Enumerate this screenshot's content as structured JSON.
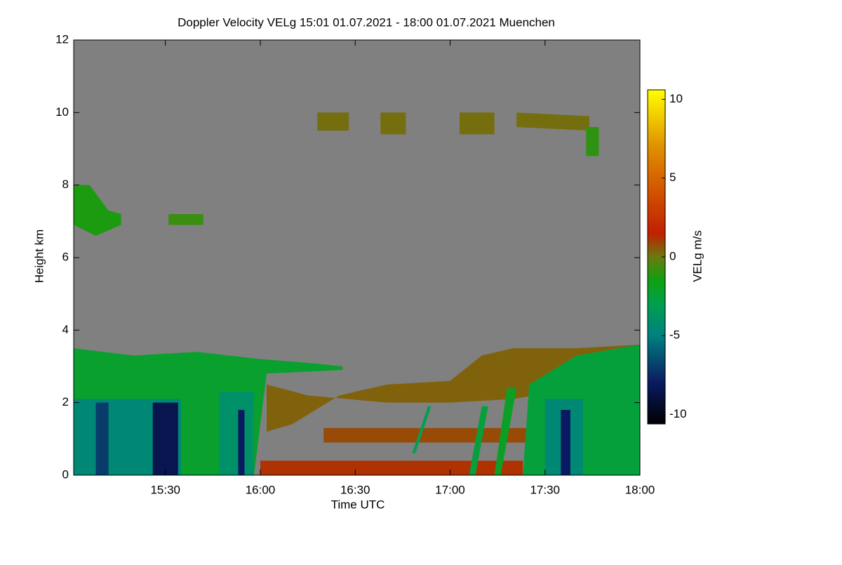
{
  "chart_data": {
    "type": "heatmap",
    "title": "Doppler Velocity VELg   15:01 01.07.2021 - 18:00 01.07.2021 Muenchen",
    "xlabel": "Time UTC",
    "ylabel": "Height km",
    "colorbar_label": "VELg m/s",
    "xlim": [
      901,
      1080
    ],
    "xticks": [
      {
        "value": 930,
        "label": "15:30"
      },
      {
        "value": 960,
        "label": "16:00"
      },
      {
        "value": 990,
        "label": "16:30"
      },
      {
        "value": 1020,
        "label": "17:00"
      },
      {
        "value": 1050,
        "label": "17:30"
      },
      {
        "value": 1080,
        "label": "18:00"
      }
    ],
    "ylim": [
      0,
      12
    ],
    "yticks": [
      0,
      2,
      4,
      6,
      8,
      10,
      12
    ],
    "zlim": [
      -10.6,
      10.6
    ],
    "zticks": [
      -10,
      -5,
      0,
      5,
      10
    ],
    "background": "#808080",
    "colormap": [
      {
        "value": -10.6,
        "color": "#000000"
      },
      {
        "value": -8,
        "color": "#0a1a60"
      },
      {
        "value": -5,
        "color": "#008080"
      },
      {
        "value": -3,
        "color": "#00a050"
      },
      {
        "value": -1.5,
        "color": "#10a010"
      },
      {
        "value": 0,
        "color": "#6a7a10"
      },
      {
        "value": 1.5,
        "color": "#c02000"
      },
      {
        "value": 4,
        "color": "#d05000"
      },
      {
        "value": 7,
        "color": "#e09000"
      },
      {
        "value": 10.6,
        "color": "#ffff00"
      }
    ],
    "regions": [
      {
        "value": -2.2,
        "time": [
          901,
          901,
          920,
          940,
          960,
          975,
          986,
          986,
          962,
          958
        ],
        "height": [
          0,
          3.5,
          3.3,
          3.4,
          3.2,
          3.1,
          3.0,
          2.9,
          2.8,
          0
        ]
      },
      {
        "value": -4.5,
        "time": [
          901,
          901,
          935,
          935
        ],
        "height": [
          0,
          2.1,
          2.1,
          0
        ]
      },
      {
        "value": -4,
        "time": [
          947,
          947,
          958,
          958
        ],
        "height": [
          0,
          2.3,
          2.3,
          0
        ]
      },
      {
        "value": -7,
        "time": [
          908,
          908,
          912,
          912
        ],
        "height": [
          0,
          2,
          2,
          0
        ]
      },
      {
        "value": -8.5,
        "time": [
          926,
          926,
          934,
          934
        ],
        "height": [
          0,
          2,
          2,
          0
        ]
      },
      {
        "value": -8,
        "time": [
          953,
          953,
          955,
          955
        ],
        "height": [
          0,
          1.8,
          1.8,
          0
        ]
      },
      {
        "value": 0.4,
        "time": [
          962,
          975,
          1000,
          1020,
          1040,
          1060,
          1080,
          1080,
          1060,
          1040,
          1030,
          1020,
          1000,
          985,
          970,
          962
        ],
        "height": [
          2.5,
          2.2,
          2.0,
          2.0,
          2.1,
          2.4,
          2.6,
          3.6,
          3.5,
          3.5,
          3.3,
          2.6,
          2.5,
          2.2,
          1.4,
          1.2
        ]
      },
      {
        "value": 1.2,
        "time": [
          960,
          960,
          1043,
          1043
        ],
        "height": [
          0,
          0.4,
          0.4,
          0
        ]
      },
      {
        "value": 0.8,
        "time": [
          980,
          980,
          1050,
          1050
        ],
        "height": [
          0.9,
          1.3,
          1.3,
          0.9
        ]
      },
      {
        "value": -2.5,
        "time": [
          1043,
          1045,
          1060,
          1080,
          1080
        ],
        "height": [
          0,
          2.5,
          3.3,
          3.6,
          0
        ]
      },
      {
        "value": -4.5,
        "time": [
          1050,
          1050,
          1062,
          1062
        ],
        "height": [
          0,
          2.1,
          2.1,
          0
        ]
      },
      {
        "value": -8,
        "time": [
          1055,
          1055,
          1058,
          1058
        ],
        "height": [
          0,
          1.8,
          1.8,
          0
        ]
      },
      {
        "value": -2.5,
        "time": [
          1026,
          1030,
          1032,
          1028
        ],
        "height": [
          0,
          1.9,
          1.9,
          0
        ]
      },
      {
        "value": -2,
        "time": [
          1034,
          1038,
          1041,
          1036
        ],
        "height": [
          0,
          2.4,
          2.4,
          0
        ]
      },
      {
        "value": -3,
        "time": [
          1008,
          1013,
          1014,
          1009
        ],
        "height": [
          0.6,
          1.9,
          1.9,
          0.6
        ]
      },
      {
        "value": -1.3,
        "time": [
          901,
          901,
          906,
          912,
          916,
          916,
          908
        ],
        "height": [
          6.9,
          8.0,
          8.0,
          7.3,
          7.2,
          6.9,
          6.6
        ]
      },
      {
        "value": -0.8,
        "time": [
          931,
          931,
          942,
          942
        ],
        "height": [
          6.9,
          7.2,
          7.2,
          6.9
        ]
      },
      {
        "value": 0.2,
        "time": [
          978,
          978,
          988,
          988
        ],
        "height": [
          9.5,
          10.0,
          10.0,
          9.5
        ]
      },
      {
        "value": 0.2,
        "time": [
          998,
          998,
          1006,
          1006
        ],
        "height": [
          9.4,
          10.0,
          10.0,
          9.4
        ]
      },
      {
        "value": 0.2,
        "time": [
          1023,
          1023,
          1034,
          1034
        ],
        "height": [
          9.4,
          10.0,
          10.0,
          9.4
        ]
      },
      {
        "value": 0.2,
        "time": [
          1041,
          1041,
          1064,
          1064
        ],
        "height": [
          9.6,
          10.0,
          9.9,
          9.5
        ]
      },
      {
        "value": -1,
        "time": [
          1063,
          1063,
          1067,
          1067
        ],
        "height": [
          8.8,
          9.6,
          9.6,
          8.8
        ]
      }
    ]
  }
}
